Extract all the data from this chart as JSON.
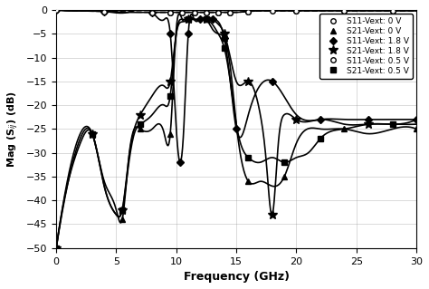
{
  "title": "",
  "xlabel": "Frequency (GHz)",
  "ylabel": "Mag (S$_{ij}$) (dB)",
  "xlim": [
    0.0,
    30.0
  ],
  "ylim": [
    -50,
    0
  ],
  "xticks": [
    0.0,
    5.0,
    10.0,
    15.0,
    20.0,
    25.0,
    30.0
  ],
  "yticks": [
    0,
    -5,
    -10,
    -15,
    -20,
    -25,
    -30,
    -35,
    -40,
    -45,
    -50
  ],
  "legend": [
    "S11-Vext: 0 V",
    "S21-Vext: 0 V",
    "S11-Vext: 1.8 V",
    "S21-Vext: 1.8 V",
    "S11-Vext: 0.5 V",
    "S21-Vext: 0.5 V"
  ],
  "S11_0V_x": [
    0,
    2,
    4,
    6,
    8,
    9,
    9.5,
    10,
    10.5,
    11,
    11.5,
    12,
    12.5,
    13,
    13.5,
    14,
    14.5,
    15,
    16,
    17,
    18,
    19,
    20,
    22,
    24,
    26,
    28,
    30
  ],
  "S11_0V_y": [
    0,
    -0.2,
    -0.3,
    -0.4,
    -0.5,
    -0.5,
    -0.5,
    -0.5,
    -0.5,
    -0.5,
    -0.5,
    -0.5,
    -0.5,
    -0.5,
    -0.5,
    -0.5,
    -0.5,
    -0.5,
    -0.3,
    -0.2,
    -0.2,
    -0.2,
    -0.2,
    -0.2,
    -0.2,
    -0.2,
    -0.2,
    -0.2
  ],
  "S21_0V_x": [
    0,
    1,
    2,
    3,
    4,
    5,
    5.5,
    6,
    6.5,
    7,
    8,
    9,
    9.5,
    10,
    10.5,
    11,
    11.5,
    12,
    12.5,
    13,
    13.5,
    14,
    14.5,
    15,
    16,
    17,
    18,
    19,
    20,
    22,
    24,
    26,
    28,
    30
  ],
  "S21_0V_y": [
    -50,
    -35,
    -26,
    -26,
    -36,
    -42,
    -44,
    -32,
    -25,
    -25,
    -25,
    -26,
    -26,
    -4,
    -2,
    -2,
    -2,
    -2,
    -2,
    -4,
    -5,
    -6,
    -12,
    -24,
    -36,
    -36,
    -37,
    -35,
    -28,
    -25,
    -25,
    -26,
    -25,
    -25
  ],
  "S11_18V_x": [
    0,
    2,
    4,
    6,
    8,
    9,
    9.5,
    10,
    10.3,
    10.6,
    11,
    11.5,
    12,
    12.5,
    13,
    13.5,
    14,
    14.5,
    15,
    16,
    18,
    20,
    22,
    24,
    26,
    28,
    30
  ],
  "S11_18V_y": [
    0,
    -0.2,
    -0.3,
    -0.5,
    -0.5,
    -2,
    -5,
    -25,
    -32,
    -26,
    -5,
    -2,
    -2,
    -2,
    -2,
    -2.5,
    -6,
    -15,
    -25,
    -22,
    -15,
    -22,
    -23,
    -23,
    -23,
    -23,
    -23
  ],
  "S21_18V_x": [
    0,
    1,
    2,
    3,
    4,
    5,
    5.5,
    6,
    6.5,
    7,
    8,
    9,
    9.5,
    10,
    10.5,
    11,
    11.5,
    12,
    12.5,
    13,
    13.5,
    14,
    14.5,
    15,
    16,
    17,
    17.5,
    18,
    18.5,
    19,
    20,
    22,
    24,
    26,
    28,
    30
  ],
  "S21_18V_y": [
    -50,
    -36,
    -28,
    -26,
    -37,
    -43,
    -42,
    -32,
    -25,
    -22,
    -18,
    -16,
    -15,
    -5,
    -2.5,
    -2,
    -2,
    -2,
    -2,
    -2,
    -3,
    -5,
    -10,
    -15,
    -15,
    -22,
    -32,
    -43,
    -28,
    -22,
    -23,
    -23,
    -24,
    -24,
    -24,
    -24
  ],
  "S11_05V_x": [
    0,
    2,
    4,
    6,
    8,
    9,
    9.5,
    10,
    10.5,
    11,
    11.5,
    12,
    12.5,
    13,
    13.5,
    14,
    14.5,
    15,
    16,
    18,
    20,
    22,
    24,
    26,
    28,
    30
  ],
  "S11_05V_y": [
    0,
    -0.2,
    -0.3,
    -0.5,
    -0.5,
    -0.5,
    -0.5,
    -0.5,
    -0.5,
    -0.5,
    -0.5,
    -0.5,
    -0.5,
    -0.5,
    -0.5,
    -0.5,
    -0.5,
    -0.5,
    -0.3,
    -0.2,
    -0.2,
    -0.2,
    -0.2,
    -0.2,
    -0.2,
    -0.2
  ],
  "S21_05V_x": [
    0,
    1,
    2,
    3,
    4,
    5,
    5.5,
    6,
    6.5,
    7,
    8,
    9,
    9.5,
    10,
    10.5,
    11,
    11.5,
    12,
    12.5,
    13,
    13.5,
    14,
    14.5,
    15,
    16,
    17,
    18,
    19,
    20,
    21,
    22,
    24,
    26,
    28,
    30
  ],
  "S21_05V_y": [
    -50,
    -36,
    -27,
    -26,
    -37,
    -43,
    -42,
    -33,
    -26,
    -24,
    -22,
    -20,
    -18,
    -5,
    -2,
    -2,
    -2,
    -2,
    -2,
    -3,
    -5,
    -8,
    -15,
    -24,
    -31,
    -32,
    -31,
    -32,
    -31,
    -30,
    -27,
    -25,
    -24,
    -24,
    -23
  ]
}
